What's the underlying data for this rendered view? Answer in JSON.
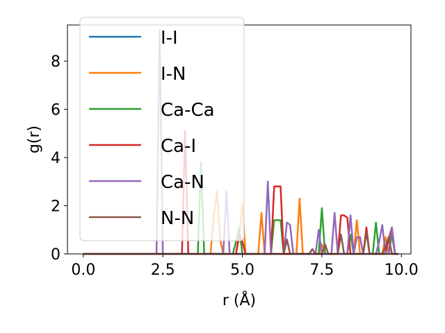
{
  "chart_data": {
    "type": "line",
    "xlabel": "r (Å)",
    "ylabel": "g(r)",
    "xlim": [
      -0.5,
      10.3
    ],
    "ylim": [
      0,
      9.5
    ],
    "xticks": [
      0.0,
      2.5,
      5.0,
      7.5,
      10.0
    ],
    "xtick_labels": [
      "0.0",
      "2.5",
      "5.0",
      "7.5",
      "10.0"
    ],
    "yticks": [
      0,
      2,
      4,
      6,
      8
    ],
    "ytick_labels": [
      "0",
      "2",
      "4",
      "6",
      "8"
    ],
    "grid": false,
    "legend_position": "upper-left",
    "series": [
      {
        "name": "I-I",
        "color": "#1f77b4",
        "x": [
          0.0,
          9.9
        ],
        "y": [
          0.0,
          0.0
        ]
      },
      {
        "name": "I-N",
        "color": "#ff7f0e",
        "x": [
          0.0,
          3.9,
          4.0,
          4.1,
          4.2,
          4.3,
          4.4,
          4.8,
          4.9,
          5.0,
          5.1,
          5.5,
          5.6,
          5.7,
          6.6,
          6.7,
          6.8,
          6.9,
          7.4,
          7.5,
          7.6,
          8.5,
          8.6,
          8.7,
          9.4,
          9.5,
          9.6,
          9.9
        ],
        "y": [
          0.0,
          0.0,
          0.0,
          1.6,
          2.6,
          0.6,
          0.0,
          0.0,
          0.7,
          2.1,
          0.0,
          0.0,
          1.7,
          0.0,
          0.0,
          0.0,
          2.3,
          0.0,
          0.0,
          0.4,
          0.0,
          0.0,
          1.4,
          0.0,
          0.0,
          0.7,
          0.0,
          0.0
        ]
      },
      {
        "name": "Ca-Ca",
        "color": "#2ca02c",
        "x": [
          0.0,
          3.6,
          3.7,
          3.8,
          4.7,
          4.8,
          4.9,
          5.0,
          5.9,
          6.0,
          6.1,
          6.2,
          6.3,
          7.4,
          7.5,
          7.6,
          8.3,
          8.4,
          8.5,
          8.6,
          9.1,
          9.2,
          9.3,
          9.6,
          9.7,
          9.8,
          9.9
        ],
        "y": [
          0.0,
          0.0,
          3.8,
          0.0,
          0.0,
          0.5,
          1.1,
          0.0,
          0.0,
          1.4,
          1.4,
          1.4,
          0.0,
          0.0,
          1.9,
          0.0,
          0.0,
          0.8,
          0.0,
          0.0,
          0.0,
          1.3,
          0.0,
          0.0,
          0.8,
          0.0,
          0.0
        ]
      },
      {
        "name": "Ca-I",
        "color": "#d62728",
        "x": [
          0.0,
          3.1,
          3.2,
          3.3,
          4.8,
          4.9,
          5.0,
          5.1,
          5.9,
          6.0,
          6.1,
          6.2,
          6.3,
          6.4,
          7.9,
          8.0,
          8.1,
          8.2,
          8.3,
          8.4,
          8.8,
          8.9,
          9.0,
          9.5,
          9.6,
          9.7,
          9.8,
          9.9
        ],
        "y": [
          0.0,
          0.0,
          5.1,
          0.0,
          0.0,
          0.8,
          0.5,
          0.0,
          0.0,
          2.8,
          2.8,
          2.8,
          0.0,
          0.0,
          0.0,
          0.0,
          1.6,
          1.6,
          1.5,
          0.0,
          0.0,
          1.1,
          0.0,
          0.0,
          0.6,
          1.1,
          0.0,
          0.0
        ]
      },
      {
        "name": "Ca-N",
        "color": "#9467bd",
        "x": [
          0.0,
          2.3,
          2.4,
          2.5,
          4.4,
          4.5,
          4.6,
          5.7,
          5.8,
          5.9,
          6.3,
          6.4,
          6.5,
          6.6,
          7.3,
          7.4,
          7.5,
          7.8,
          7.9,
          8.0,
          8.3,
          8.4,
          8.5,
          8.6,
          8.7,
          8.8,
          9.2,
          9.3,
          9.4,
          9.5,
          9.6,
          9.7,
          9.8,
          9.9
        ],
        "y": [
          0.0,
          0.0,
          9.3,
          0.0,
          0.0,
          2.6,
          0.0,
          0.0,
          3.0,
          0.0,
          0.0,
          1.3,
          1.2,
          0.0,
          0.0,
          1.0,
          0.0,
          0.0,
          1.7,
          0.0,
          0.0,
          1.6,
          0.0,
          0.7,
          0.7,
          0.0,
          0.0,
          0.5,
          1.2,
          0.0,
          0.0,
          1.1,
          0.0,
          0.0
        ]
      },
      {
        "name": "N-N",
        "color": "#8c564b",
        "x": [
          0.0,
          6.3,
          6.4,
          6.5,
          7.1,
          7.2,
          7.3,
          7.5,
          7.6,
          7.7,
          8.0,
          8.1,
          8.2,
          8.3,
          8.8,
          8.9,
          9.0,
          9.4,
          9.5,
          9.6,
          9.7,
          9.8,
          9.9
        ],
        "y": [
          0.0,
          0.0,
          0.6,
          0.0,
          0.0,
          0.2,
          0.0,
          0.0,
          0.4,
          0.0,
          0.0,
          0.8,
          0.0,
          0.0,
          0.0,
          0.9,
          0.0,
          0.0,
          0.3,
          0.7,
          0.0,
          0.0,
          0.0
        ]
      }
    ]
  }
}
